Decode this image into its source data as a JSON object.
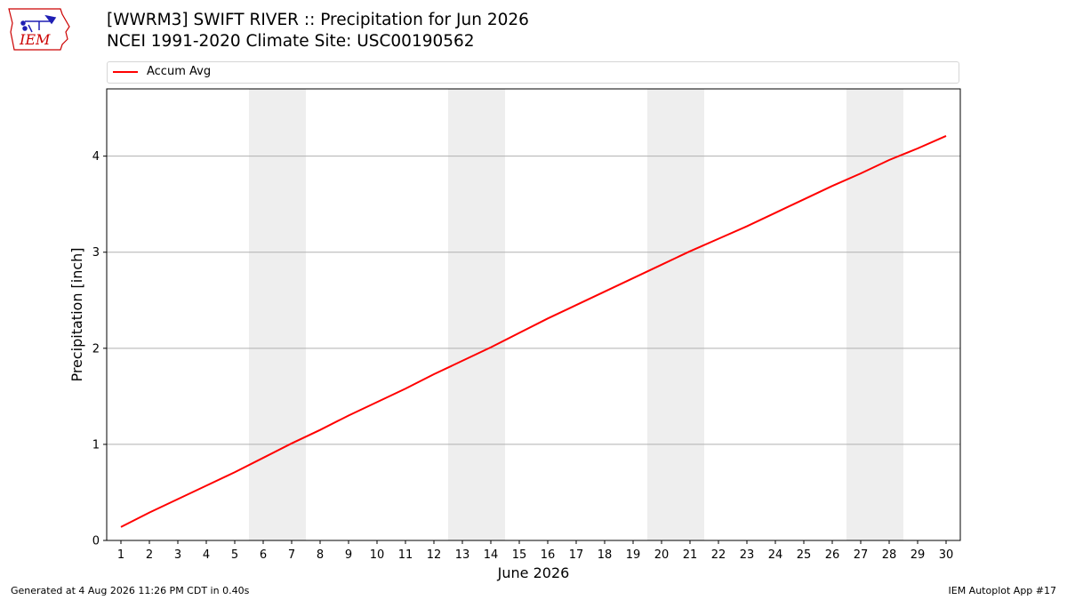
{
  "title_line1": "[WWRM3] SWIFT RIVER :: Precipitation for Jun 2026",
  "title_line2": "NCEI 1991-2020 Climate Site: USC00190562",
  "logo_text": "IEM",
  "footer_left": "Generated at 4 Aug 2026 11:26 PM CDT in 0.40s",
  "footer_right": "IEM Autoplot App #17",
  "colors": {
    "series": "#ff0000",
    "weekend": "#eeeeee",
    "grid": "#b0b0b0",
    "logo": "#cc0000",
    "logo_blue": "#1f1fb4"
  },
  "chart_data": {
    "type": "line",
    "xlabel": "June 2026",
    "ylabel": "Precipitation [inch]",
    "xlim": [
      0.5,
      30.5
    ],
    "ylim": [
      0,
      4.7
    ],
    "yticks": [
      0,
      1,
      2,
      3,
      4
    ],
    "grid": "horizontal",
    "legend": "top",
    "weekend_spans": [
      [
        5.5,
        7.5
      ],
      [
        12.5,
        14.5
      ],
      [
        19.5,
        21.5
      ],
      [
        26.5,
        28.5
      ]
    ],
    "categories": [
      "1",
      "2",
      "3",
      "4",
      "5",
      "6",
      "7",
      "8",
      "9",
      "10",
      "11",
      "12",
      "13",
      "14",
      "15",
      "16",
      "17",
      "18",
      "19",
      "20",
      "21",
      "22",
      "23",
      "24",
      "25",
      "26",
      "27",
      "28",
      "29",
      "30"
    ],
    "series": [
      {
        "name": "Accum Avg",
        "values": [
          0.14,
          0.29,
          0.43,
          0.57,
          0.71,
          0.86,
          1.01,
          1.15,
          1.3,
          1.44,
          1.58,
          1.73,
          1.87,
          2.01,
          2.16,
          2.31,
          2.45,
          2.59,
          2.73,
          2.87,
          3.01,
          3.14,
          3.27,
          3.41,
          3.55,
          3.69,
          3.82,
          3.96,
          4.08,
          4.21
        ]
      }
    ]
  }
}
